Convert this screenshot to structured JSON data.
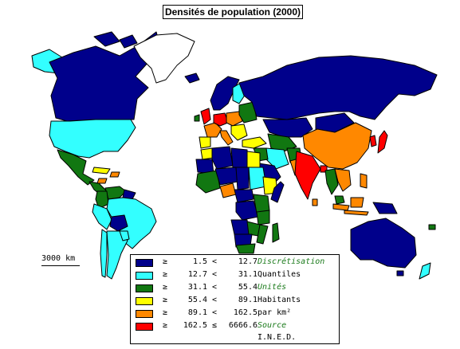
{
  "title": "Densités de population (2000)",
  "scale": {
    "label": "3000 km"
  },
  "legend": {
    "classes": [
      {
        "color": "#00008b",
        "geq": "≥",
        "low": "1.5",
        "op": "<",
        "high": "12.7"
      },
      {
        "color": "#33ffff",
        "geq": "≥",
        "low": "12.7",
        "op": "<",
        "high": "31.1"
      },
      {
        "color": "#117711",
        "geq": "≥",
        "low": "31.1",
        "op": "<",
        "high": "55.4"
      },
      {
        "color": "#ffff00",
        "geq": "≥",
        "low": "55.4",
        "op": "<",
        "high": "89.1"
      },
      {
        "color": "#ff8800",
        "geq": "≥",
        "low": "89.1",
        "op": "<",
        "high": "162.5"
      },
      {
        "color": "#ff0000",
        "geq": "≥",
        "low": "162.5",
        "op": "≤",
        "high": "6666.6"
      }
    ],
    "notes": {
      "discretisation_heading": "Discrétisation",
      "discretisation_value": "Quantiles",
      "units_heading": "Unités",
      "units_value_1": "Habitants",
      "units_value_2": "par km²",
      "source_heading": "Source",
      "source_value": "I.N.E.D."
    }
  },
  "colors": {
    "c1": "#00008b",
    "c2": "#33ffff",
    "c3": "#117711",
    "c4": "#ffff00",
    "c5": "#ff8800",
    "c6": "#ff0000",
    "nodata": "#ffffff"
  }
}
